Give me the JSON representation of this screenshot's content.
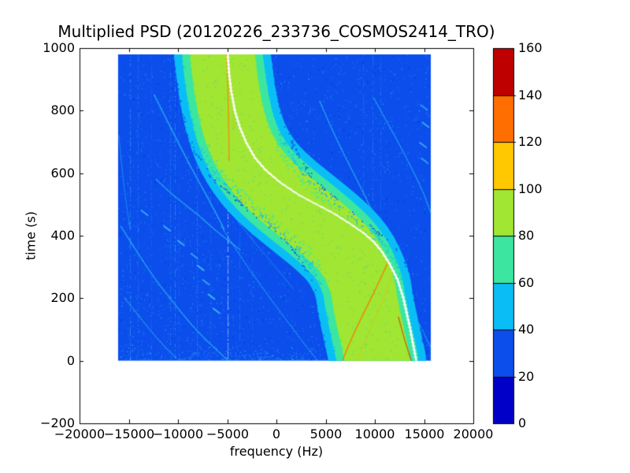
{
  "figure": {
    "title": "Multiplied PSD (20120226_233736_COSMOS2414_TRO)",
    "background": "#ffffff"
  },
  "axes": {
    "xlabel": "frequency (Hz)",
    "ylabel": "time (s)",
    "xlim": [
      -20000,
      20000
    ],
    "ylim": [
      -200,
      1000
    ],
    "xticks": {
      "values": [
        -20000,
        -15000,
        -10000,
        -5000,
        0,
        5000,
        10000,
        15000,
        20000
      ],
      "labels": [
        "−20000",
        "−15000",
        "−10000",
        "−5000",
        "0",
        "5000",
        "10000",
        "15000",
        "20000"
      ]
    },
    "yticks": {
      "values": [
        1000,
        800,
        600,
        400,
        200,
        0,
        -200
      ],
      "labels": [
        "1000",
        "800",
        "600",
        "400",
        "200",
        "0",
        "−200"
      ]
    }
  },
  "colorbar": {
    "min": 0,
    "max": 160,
    "tick_labels": [
      "0",
      "20",
      "40",
      "60",
      "80",
      "100",
      "120",
      "140",
      "160"
    ],
    "segment_colors": [
      "#0000C8",
      "#0B4EEC",
      "#0ABEF5",
      "#3CE6A0",
      "#A0E632",
      "#FFC800",
      "#FF6E00",
      "#BE0000"
    ]
  },
  "chart_data": {
    "type": "heatmap",
    "title": "Multiplied PSD (20120226_233736_COSMOS2414_TRO)",
    "xlabel": "frequency (Hz)",
    "ylabel": "time (s)",
    "xlim": [
      -20000,
      20000
    ],
    "ylim": [
      -200,
      1000
    ],
    "data_extent": {
      "freq": [
        -16100,
        15700
      ],
      "time": [
        0,
        980
      ]
    },
    "value_bins": [
      {
        "range": [
          0,
          20
        ],
        "color": "#0000C8"
      },
      {
        "range": [
          20,
          40
        ],
        "color": "#0B4EEC"
      },
      {
        "range": [
          40,
          60
        ],
        "color": "#0ABEF5"
      },
      {
        "range": [
          60,
          80
        ],
        "color": "#3CE6A0"
      },
      {
        "range": [
          80,
          100
        ],
        "color": "#A0E632"
      },
      {
        "range": [
          100,
          120
        ],
        "color": "#FFC800"
      },
      {
        "range": [
          120,
          140
        ],
        "color": "#FF6E00"
      },
      {
        "range": [
          140,
          160
        ],
        "color": "#BE0000"
      }
    ],
    "background_value": 30,
    "background_color": "#0B4EEC",
    "doppler_band": {
      "description": "S-shaped satellite Doppler PSD band; values given as colormap levels",
      "half_widths_hz": {
        "core": 3300,
        "mid": 4100,
        "outer": 4900
      },
      "level_values": {
        "core": 90,
        "mid": 70,
        "outer": 50,
        "background": 30
      },
      "center_points": [
        [
          980,
          -5500
        ],
        [
          900,
          -5200
        ],
        [
          820,
          -4800
        ],
        [
          750,
          -4250
        ],
        [
          700,
          -3700
        ],
        [
          650,
          -2900
        ],
        [
          600,
          -1800
        ],
        [
          560,
          -600
        ],
        [
          520,
          800
        ],
        [
          480,
          2400
        ],
        [
          440,
          4000
        ],
        [
          400,
          5500
        ],
        [
          360,
          6800
        ],
        [
          320,
          7700
        ],
        [
          280,
          8300
        ],
        [
          240,
          8800
        ],
        [
          200,
          8950
        ],
        [
          150,
          9250
        ],
        [
          100,
          9600
        ],
        [
          50,
          9950
        ],
        [
          0,
          10300
        ]
      ],
      "peak_color": "#FFFFFF",
      "peak_line_points": [
        [
          980,
          -4950
        ],
        [
          920,
          -4820
        ],
        [
          860,
          -4580
        ],
        [
          800,
          -4230
        ],
        [
          750,
          -3760
        ],
        [
          700,
          -3100
        ],
        [
          650,
          -2200
        ],
        [
          610,
          -1100
        ],
        [
          570,
          400
        ],
        [
          530,
          2300
        ],
        [
          500,
          4100
        ],
        [
          470,
          5900
        ],
        [
          440,
          7400
        ],
        [
          410,
          8800
        ],
        [
          380,
          9900
        ],
        [
          350,
          10700
        ],
        [
          310,
          11500
        ],
        [
          260,
          12300
        ],
        [
          200,
          12900
        ],
        [
          150,
          13250
        ],
        [
          100,
          13600
        ],
        [
          50,
          13900
        ],
        [
          0,
          14200
        ]
      ]
    },
    "secondary_tracks": [
      {
        "name": "arc-left-edge",
        "alpha": 0.4,
        "width": 1.4,
        "points": [
          [
            720,
            -16000
          ],
          [
            600,
            -15650
          ],
          [
            480,
            -15150
          ],
          [
            420,
            -14850
          ]
        ]
      },
      {
        "name": "arc-left-upper",
        "alpha": 0.65,
        "width": 1.7,
        "points": [
          [
            850,
            -12400
          ],
          [
            780,
            -11300
          ],
          [
            700,
            -10000
          ],
          [
            620,
            -8700
          ],
          [
            540,
            -7300
          ],
          [
            470,
            -6100
          ],
          [
            420,
            -5300
          ]
        ]
      },
      {
        "name": "arc-left-mid",
        "alpha": 0.6,
        "width": 1.6,
        "points": [
          [
            580,
            -12200
          ],
          [
            540,
            -10900
          ],
          [
            500,
            -9300
          ],
          [
            460,
            -7700
          ],
          [
            420,
            -6300
          ],
          [
            380,
            -4700
          ],
          [
            355,
            -3700
          ]
        ]
      },
      {
        "name": "arc-left-lower",
        "alpha": 0.6,
        "width": 1.6,
        "points": [
          [
            430,
            -15800
          ],
          [
            340,
            -14000
          ],
          [
            260,
            -12300
          ],
          [
            200,
            -10800
          ],
          [
            140,
            -9300
          ],
          [
            80,
            -7600
          ],
          [
            30,
            -5900
          ],
          [
            0,
            -4900
          ]
        ]
      },
      {
        "name": "arc-left-bottom",
        "alpha": 0.5,
        "width": 1.4,
        "points": [
          [
            200,
            -15400
          ],
          [
            120,
            -13400
          ],
          [
            60,
            -11800
          ],
          [
            10,
            -10200
          ]
        ]
      },
      {
        "name": "arc-right-upper",
        "alpha": 0.6,
        "width": 1.6,
        "points": [
          [
            830,
            4400
          ],
          [
            750,
            5500
          ],
          [
            670,
            6700
          ],
          [
            590,
            8000
          ],
          [
            520,
            9100
          ],
          [
            460,
            10000
          ],
          [
            420,
            10500
          ]
        ]
      },
      {
        "name": "arc-right-outer",
        "alpha": 0.55,
        "width": 1.5,
        "points": [
          [
            840,
            9900
          ],
          [
            760,
            11300
          ],
          [
            680,
            12700
          ],
          [
            600,
            14000
          ],
          [
            540,
            14900
          ],
          [
            490,
            15500
          ],
          [
            455,
            15900
          ]
        ]
      },
      {
        "name": "arc-right-bottom",
        "alpha": 0.6,
        "width": 1.4,
        "points": [
          [
            185,
            13500
          ],
          [
            120,
            14500
          ],
          [
            60,
            15400
          ],
          [
            25,
            16000
          ]
        ]
      },
      {
        "name": "line-cross-bottom",
        "alpha": 0.55,
        "width": 1.2,
        "points": [
          [
            430,
            -5600
          ],
          [
            340,
            -3800
          ],
          [
            250,
            -1800
          ],
          [
            160,
            300
          ],
          [
            80,
            2200
          ],
          [
            20,
            3700
          ],
          [
            0,
            4200
          ]
        ]
      },
      {
        "name": "line-cross-mid",
        "alpha": 0.4,
        "width": 1.1,
        "points": [
          [
            465,
            -4400
          ],
          [
            400,
            -2800
          ],
          [
            330,
            -900
          ],
          [
            270,
            700
          ],
          [
            230,
            1700
          ]
        ]
      },
      {
        "name": "streak-5khz",
        "alpha": 0.5,
        "width": 3,
        "points": [
          [
            345,
            4820
          ],
          [
            250,
            4950
          ],
          [
            150,
            5200
          ]
        ]
      }
    ],
    "dash_marks": [
      [
        473,
        -13400
      ],
      [
        423,
        -11100
      ],
      [
        377,
        -9700
      ],
      [
        335,
        -8350
      ],
      [
        297,
        -7700
      ],
      [
        251,
        -7150
      ],
      [
        205,
        -6600
      ],
      [
        160,
        -6100
      ],
      [
        810,
        15000
      ],
      [
        755,
        15150
      ],
      [
        690,
        14900
      ],
      [
        640,
        15050
      ]
    ],
    "rfi_vertical_lines": [
      {
        "freq": -14880,
        "alpha": 0.5
      },
      {
        "freq": -14100,
        "alpha": 0.3
      },
      {
        "freq": -12700,
        "alpha": 0.2
      },
      {
        "freq": -10800,
        "alpha": 0.35
      },
      {
        "freq": -10300,
        "alpha": 0.5
      },
      {
        "freq": -9900,
        "alpha": 0.22
      },
      {
        "freq": -8080,
        "alpha": 0.4
      },
      {
        "freq": -6700,
        "alpha": 0.25
      },
      {
        "freq": -4950,
        "alpha": 0.85,
        "color": "#E8F8FF",
        "density": 0.75,
        "t_range": [
          0,
          620
        ]
      },
      {
        "freq": -3730,
        "alpha": 0.3
      },
      {
        "freq": -2500,
        "alpha": 0.2
      },
      {
        "freq": 8800,
        "alpha": 0.3
      },
      {
        "freq": 9760,
        "alpha": 0.3
      },
      {
        "freq": 10560,
        "alpha": 0.28
      }
    ],
    "overlay_lines": [
      {
        "name": "orange-top",
        "color": "#FF8000",
        "alpha": 0.85,
        "width": 1.3,
        "points": [
          [
            980,
            -5050
          ],
          [
            900,
            -4960
          ],
          [
            800,
            -4880
          ],
          [
            700,
            -4820
          ],
          [
            640,
            -4800
          ]
        ]
      },
      {
        "name": "orange-top-right",
        "color": "#FFA000",
        "alpha": 0.5,
        "width": 1.0,
        "points": [
          [
            880,
            -4520
          ],
          [
            800,
            -4400
          ],
          [
            740,
            -4300
          ]
        ]
      },
      {
        "name": "orange-bottom",
        "color": "#FF7000",
        "alpha": 0.85,
        "width": 1.4,
        "points": [
          [
            320,
            11400
          ],
          [
            250,
            10400
          ],
          [
            180,
            9300
          ],
          [
            110,
            8200
          ],
          [
            40,
            7200
          ],
          [
            0,
            6700
          ]
        ]
      },
      {
        "name": "orange-bottom-faint",
        "color": "#FFB000",
        "alpha": 0.45,
        "width": 1.0,
        "points": [
          [
            285,
            11900
          ],
          [
            200,
            10900
          ],
          [
            120,
            9800
          ],
          [
            40,
            8700
          ],
          [
            0,
            8200
          ]
        ]
      },
      {
        "name": "red-bottom-edge",
        "color": "#D42A00",
        "alpha": 0.7,
        "width": 1.3,
        "points": [
          [
            140,
            12400
          ],
          [
            80,
            12900
          ],
          [
            30,
            13400
          ],
          [
            0,
            13700
          ]
        ]
      }
    ],
    "noise": {
      "seed": 1234567,
      "background_speckle": 2600,
      "edge_speckle": 1600
    }
  }
}
